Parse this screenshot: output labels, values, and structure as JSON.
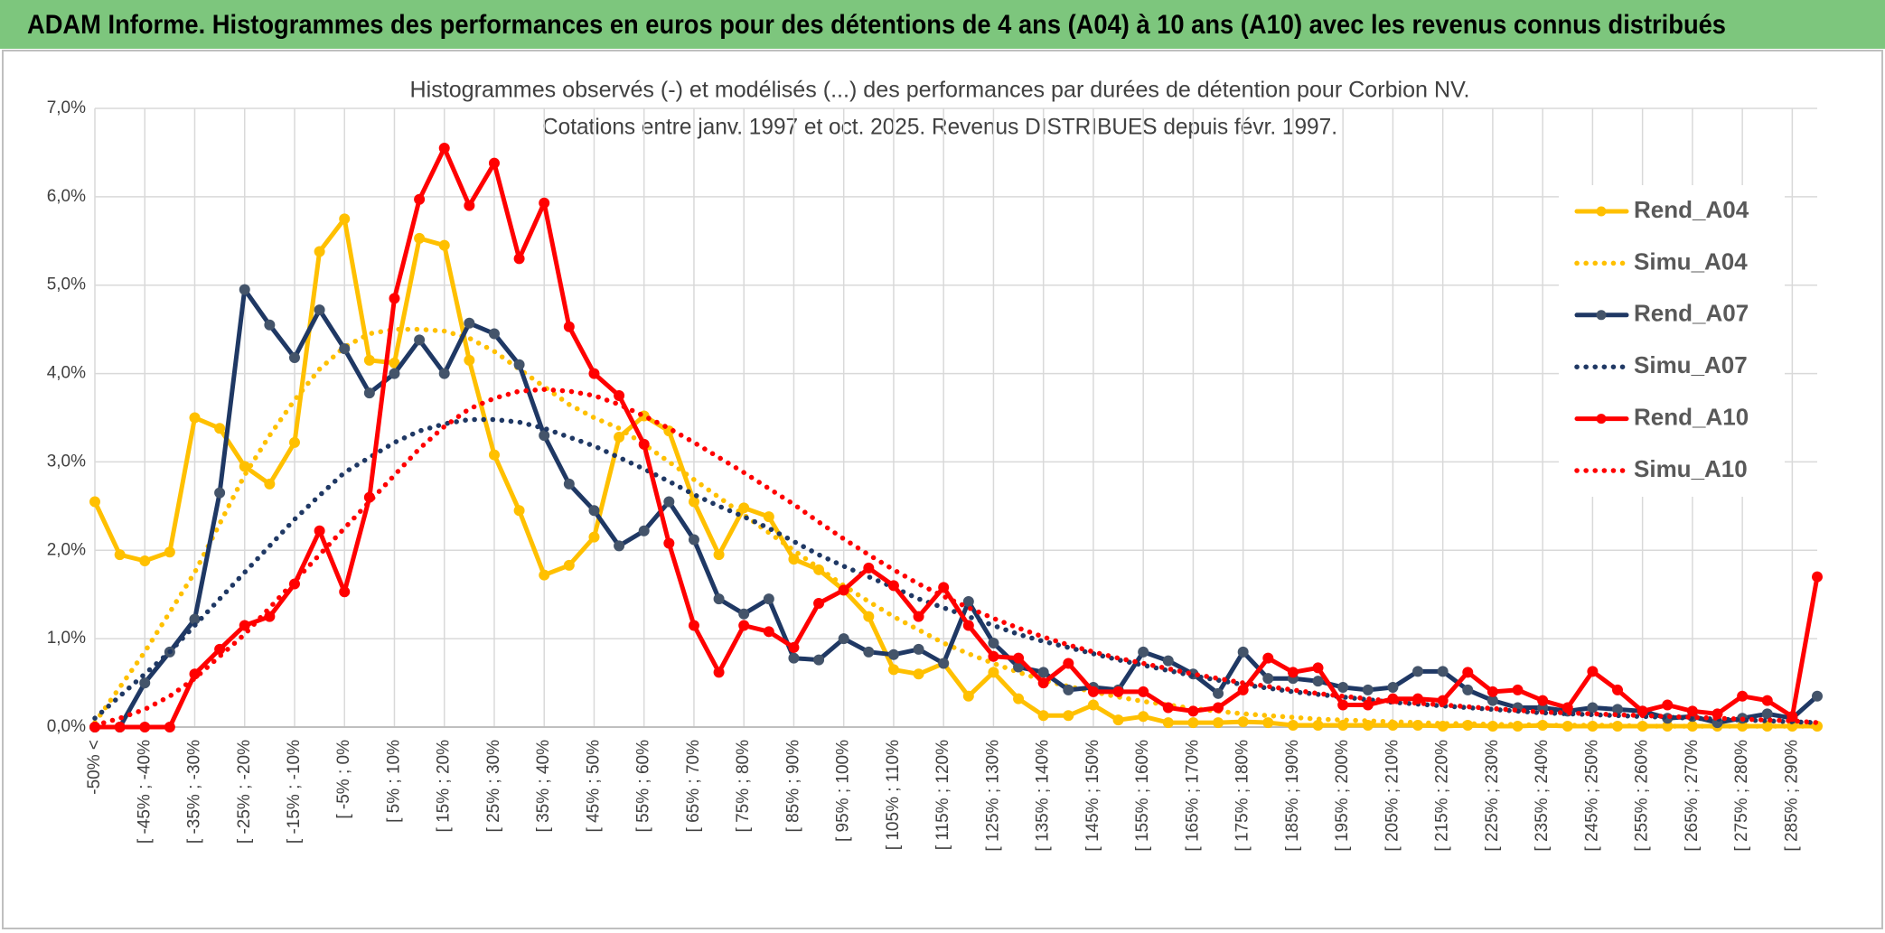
{
  "chart_data": {
    "type": "line",
    "header": "ADAM Informe. Histogrammes des performances en euros pour des détentions de 4 ans (A04) à 10 ans (A10) avec les revenus connus distribués",
    "title": "Histogrammes observés (-) et modélisés (...) des performances par durées de détention pour Corbion NV.",
    "subtitle": "Cotations entre janv. 1997 et oct. 2025. Revenus DISTRIBUES depuis févr. 1997.",
    "categories": [
      "-50% <",
      null,
      "[ -45% ; -40%",
      null,
      "[ -35% ; -30%",
      null,
      "[ -25% ; -20%",
      null,
      "[ -15% ; -10%",
      null,
      "[ -5% ; 0%",
      null,
      "[ 5% ; 10%",
      null,
      "[ 15% ; 20%",
      null,
      "[ 25% ; 30%",
      null,
      "[ 35% ; 40%",
      null,
      "[ 45% ; 50%",
      null,
      "[ 55% ; 60%",
      null,
      "[ 65% ; 70%",
      null,
      "[ 75% ; 80%",
      null,
      "[ 85% ; 90%",
      null,
      "[ 95% ; 100%",
      null,
      "[ 105% ; 110%",
      null,
      "[ 115% ; 120%",
      null,
      "[ 125% ; 130%",
      null,
      "[ 135% ; 140%",
      null,
      "[ 145% ; 150%",
      null,
      "[ 155% ; 160%",
      null,
      "[ 165% ; 170%",
      null,
      "[ 175% ; 180%",
      null,
      "[ 185% ; 190%",
      null,
      "[ 195% ; 200%",
      null,
      "[ 205% ; 210%",
      null,
      "[ 215% ; 220%",
      null,
      "[ 225% ; 230%",
      null,
      "[ 235% ; 240%",
      null,
      "[ 245% ; 250%",
      null,
      "[ 255% ; 260%",
      null,
      "[ 265% ; 270%",
      null,
      "[ 275% ; 280%",
      null,
      "[ 285% ; 290%",
      null
    ],
    "series": [
      {
        "name": "Rend_A04",
        "color": "#ffc000",
        "line_style": "solid",
        "markers": true,
        "marker_color": "#ffc000",
        "values": [
          2.55,
          1.95,
          1.88,
          1.98,
          3.5,
          3.38,
          2.95,
          2.75,
          3.22,
          5.38,
          5.75,
          4.15,
          4.12,
          5.53,
          5.45,
          4.15,
          3.08,
          2.45,
          1.72,
          1.83,
          2.15,
          3.28,
          3.52,
          3.35,
          2.55,
          1.95,
          2.48,
          2.38,
          1.9,
          1.78,
          1.55,
          1.25,
          0.65,
          0.6,
          0.72,
          0.35,
          0.62,
          0.32,
          0.13,
          0.13,
          0.25,
          0.08,
          0.12,
          0.05,
          0.05,
          0.05,
          0.06,
          0.05,
          0.02,
          0.02,
          0.02,
          0.02,
          0.02,
          0.02,
          0.01,
          0.02,
          0.01,
          0.01,
          0.02,
          0.01,
          0.01,
          0.01,
          0.01,
          0.01,
          0.01,
          0.01,
          0.01,
          0.01,
          0.01,
          0.01
        ]
      },
      {
        "name": "Simu_A04",
        "color": "#ffc000",
        "line_style": "dotted",
        "markers": false,
        "values": [
          0.05,
          0.45,
          0.85,
          1.3,
          1.75,
          2.3,
          2.85,
          3.3,
          3.7,
          4.05,
          4.3,
          4.45,
          4.5,
          4.5,
          4.48,
          4.4,
          4.25,
          4.05,
          3.85,
          3.65,
          3.5,
          3.38,
          3.2,
          3.0,
          2.8,
          2.6,
          2.4,
          2.2,
          2.0,
          1.8,
          1.6,
          1.42,
          1.25,
          1.1,
          0.95,
          0.83,
          0.72,
          0.62,
          0.53,
          0.46,
          0.4,
          0.34,
          0.29,
          0.25,
          0.21,
          0.18,
          0.15,
          0.13,
          0.11,
          0.09,
          0.08,
          0.07,
          0.06,
          0.05,
          0.04,
          0.04,
          0.03,
          0.03,
          0.02,
          0.02,
          0.02,
          0.02,
          0.01,
          0.01,
          0.01,
          0.01,
          0.01,
          0.01,
          0.01,
          0.01
        ]
      },
      {
        "name": "Rend_A07",
        "color": "#1f3864",
        "line_style": "solid",
        "markers": true,
        "marker_color": "#44546a",
        "values": [
          0,
          0,
          0.5,
          0.85,
          1.22,
          2.65,
          4.95,
          4.55,
          4.18,
          4.72,
          4.28,
          3.78,
          4.0,
          4.38,
          4.0,
          4.57,
          4.45,
          4.1,
          3.3,
          2.75,
          2.45,
          2.05,
          2.22,
          2.55,
          2.12,
          1.45,
          1.28,
          1.45,
          0.78,
          0.76,
          1.0,
          0.85,
          0.82,
          0.88,
          0.72,
          1.42,
          0.95,
          0.68,
          0.62,
          0.42,
          0.45,
          0.42,
          0.85,
          0.75,
          0.6,
          0.38,
          0.85,
          0.55,
          0.55,
          0.52,
          0.45,
          0.42,
          0.45,
          0.63,
          0.63,
          0.42,
          0.3,
          0.22,
          0.22,
          0.18,
          0.22,
          0.2,
          0.18,
          0.1,
          0.12,
          0.05,
          0.1,
          0.15,
          0.1,
          0.35
        ]
      },
      {
        "name": "Simu_A07",
        "color": "#1f3864",
        "line_style": "dotted",
        "markers": false,
        "values": [
          0.1,
          0.35,
          0.6,
          0.85,
          1.15,
          1.45,
          1.75,
          2.05,
          2.35,
          2.62,
          2.88,
          3.05,
          3.22,
          3.35,
          3.43,
          3.48,
          3.48,
          3.45,
          3.38,
          3.28,
          3.18,
          3.05,
          2.92,
          2.78,
          2.63,
          2.5,
          2.38,
          2.25,
          2.1,
          1.95,
          1.82,
          1.7,
          1.58,
          1.45,
          1.35,
          1.25,
          1.15,
          1.05,
          0.97,
          0.9,
          0.83,
          0.76,
          0.7,
          0.64,
          0.58,
          0.53,
          0.48,
          0.44,
          0.4,
          0.37,
          0.34,
          0.31,
          0.28,
          0.26,
          0.24,
          0.22,
          0.2,
          0.18,
          0.16,
          0.15,
          0.14,
          0.13,
          0.12,
          0.11,
          0.1,
          0.09,
          0.08,
          0.07,
          0.06,
          0.05
        ]
      },
      {
        "name": "Rend_A10",
        "color": "#ff0000",
        "line_style": "solid",
        "markers": true,
        "marker_color": "#ff0000",
        "values": [
          0,
          0,
          0,
          0,
          0.6,
          0.88,
          1.15,
          1.25,
          1.62,
          2.22,
          1.53,
          2.6,
          4.85,
          5.97,
          6.55,
          5.9,
          6.38,
          5.3,
          5.93,
          4.53,
          4.0,
          3.75,
          3.2,
          2.08,
          1.15,
          0.62,
          1.15,
          1.08,
          0.9,
          1.4,
          1.55,
          1.8,
          1.6,
          1.25,
          1.58,
          1.15,
          0.8,
          0.78,
          0.5,
          0.72,
          0.4,
          0.4,
          0.4,
          0.22,
          0.18,
          0.22,
          0.42,
          0.78,
          0.62,
          0.67,
          0.25,
          0.25,
          0.32,
          0.32,
          0.3,
          0.62,
          0.4,
          0.42,
          0.3,
          0.22,
          0.63,
          0.42,
          0.18,
          0.25,
          0.18,
          0.15,
          0.35,
          0.3,
          0.12,
          1.7
        ]
      },
      {
        "name": "Simu_A10",
        "color": "#ff0000",
        "line_style": "dotted",
        "markers": false,
        "values": [
          0.02,
          0.1,
          0.2,
          0.35,
          0.55,
          0.8,
          1.05,
          1.35,
          1.65,
          1.95,
          2.25,
          2.55,
          2.85,
          3.15,
          3.4,
          3.6,
          3.72,
          3.8,
          3.82,
          3.8,
          3.75,
          3.65,
          3.52,
          3.38,
          3.22,
          3.05,
          2.88,
          2.7,
          2.52,
          2.32,
          2.13,
          1.95,
          1.78,
          1.62,
          1.48,
          1.35,
          1.23,
          1.12,
          1.02,
          0.93,
          0.85,
          0.78,
          0.72,
          0.66,
          0.6,
          0.55,
          0.5,
          0.46,
          0.42,
          0.38,
          0.35,
          0.32,
          0.29,
          0.27,
          0.25,
          0.23,
          0.21,
          0.19,
          0.17,
          0.16,
          0.15,
          0.14,
          0.13,
          0.12,
          0.11,
          0.1,
          0.09,
          0.08,
          0.07,
          0.05
        ]
      }
    ],
    "ylim": [
      0,
      7
    ],
    "yticks": [
      {
        "value": 0,
        "label": "0,0%"
      },
      {
        "value": 1,
        "label": "1,0%"
      },
      {
        "value": 2,
        "label": "2,0%"
      },
      {
        "value": 3,
        "label": "3,0%"
      },
      {
        "value": 4,
        "label": "4,0%"
      },
      {
        "value": 5,
        "label": "5,0%"
      },
      {
        "value": 6,
        "label": "6,0%"
      },
      {
        "value": 7,
        "label": "7,0%"
      }
    ],
    "grid": true,
    "legend": "right"
  }
}
